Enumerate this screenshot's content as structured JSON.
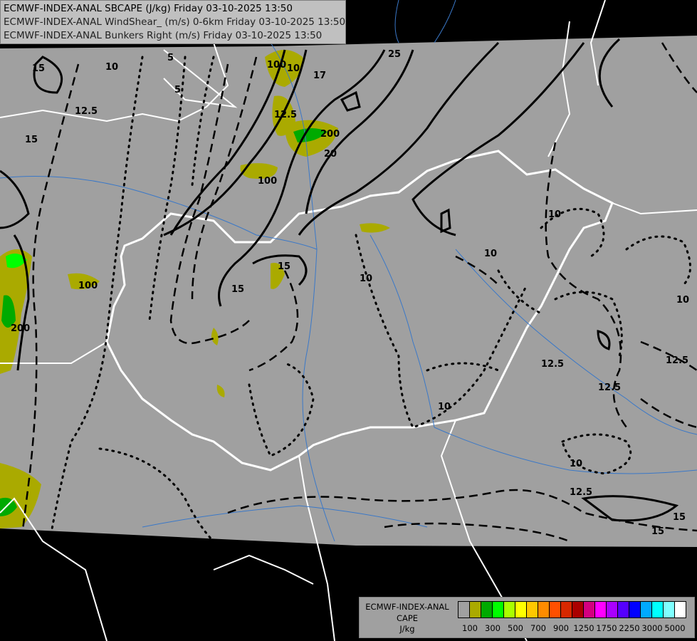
{
  "title": {
    "line1": "ECMWF-INDEX-ANAL SBCAPE (J/kg) Friday 03-10-2025 13:50",
    "line2": "ECMWF-INDEX-ANAL WindShear_ (m/s) 0-6km Friday 03-10-2025 13:50",
    "line3": "ECMWF-INDEX-ANAL Bunkers Right (m/s) Friday 03-10-2025 13:50"
  },
  "legend": {
    "line1": "ECMWF-INDEX-ANAL",
    "line2": "CAPE",
    "line3": "J/kg",
    "colors": [
      "#a0a0a0",
      "#aaaa00",
      "#00aa00",
      "#00ff00",
      "#aaff00",
      "#ffff00",
      "#ffc800",
      "#ff8c00",
      "#ff5000",
      "#d72800",
      "#aa0000",
      "#d40080",
      "#ff00ff",
      "#aa00ff",
      "#5500ff",
      "#0000ff",
      "#00aaff",
      "#00ffff",
      "#80ffff",
      "#ffffff"
    ],
    "ticks": [
      "100",
      "300",
      "500",
      "700",
      "900",
      "1250",
      "1750",
      "2250",
      "3000",
      "5000"
    ]
  },
  "map": {
    "background_color": "#000000",
    "domain_color": "#a0a0a0",
    "border_color": "#ffffff",
    "river_color": "#3a78c8",
    "contour_labels": [
      "15",
      "12.5",
      "15",
      "10",
      "5",
      "5",
      "100",
      "10",
      "17",
      "12.5",
      "25",
      "20",
      "200",
      "100",
      "15",
      "15",
      "10",
      "10",
      "10",
      "10",
      "12.5",
      "12.5",
      "10",
      "10",
      "12.5",
      "15",
      "15",
      "12.5",
      "100",
      "200"
    ]
  }
}
